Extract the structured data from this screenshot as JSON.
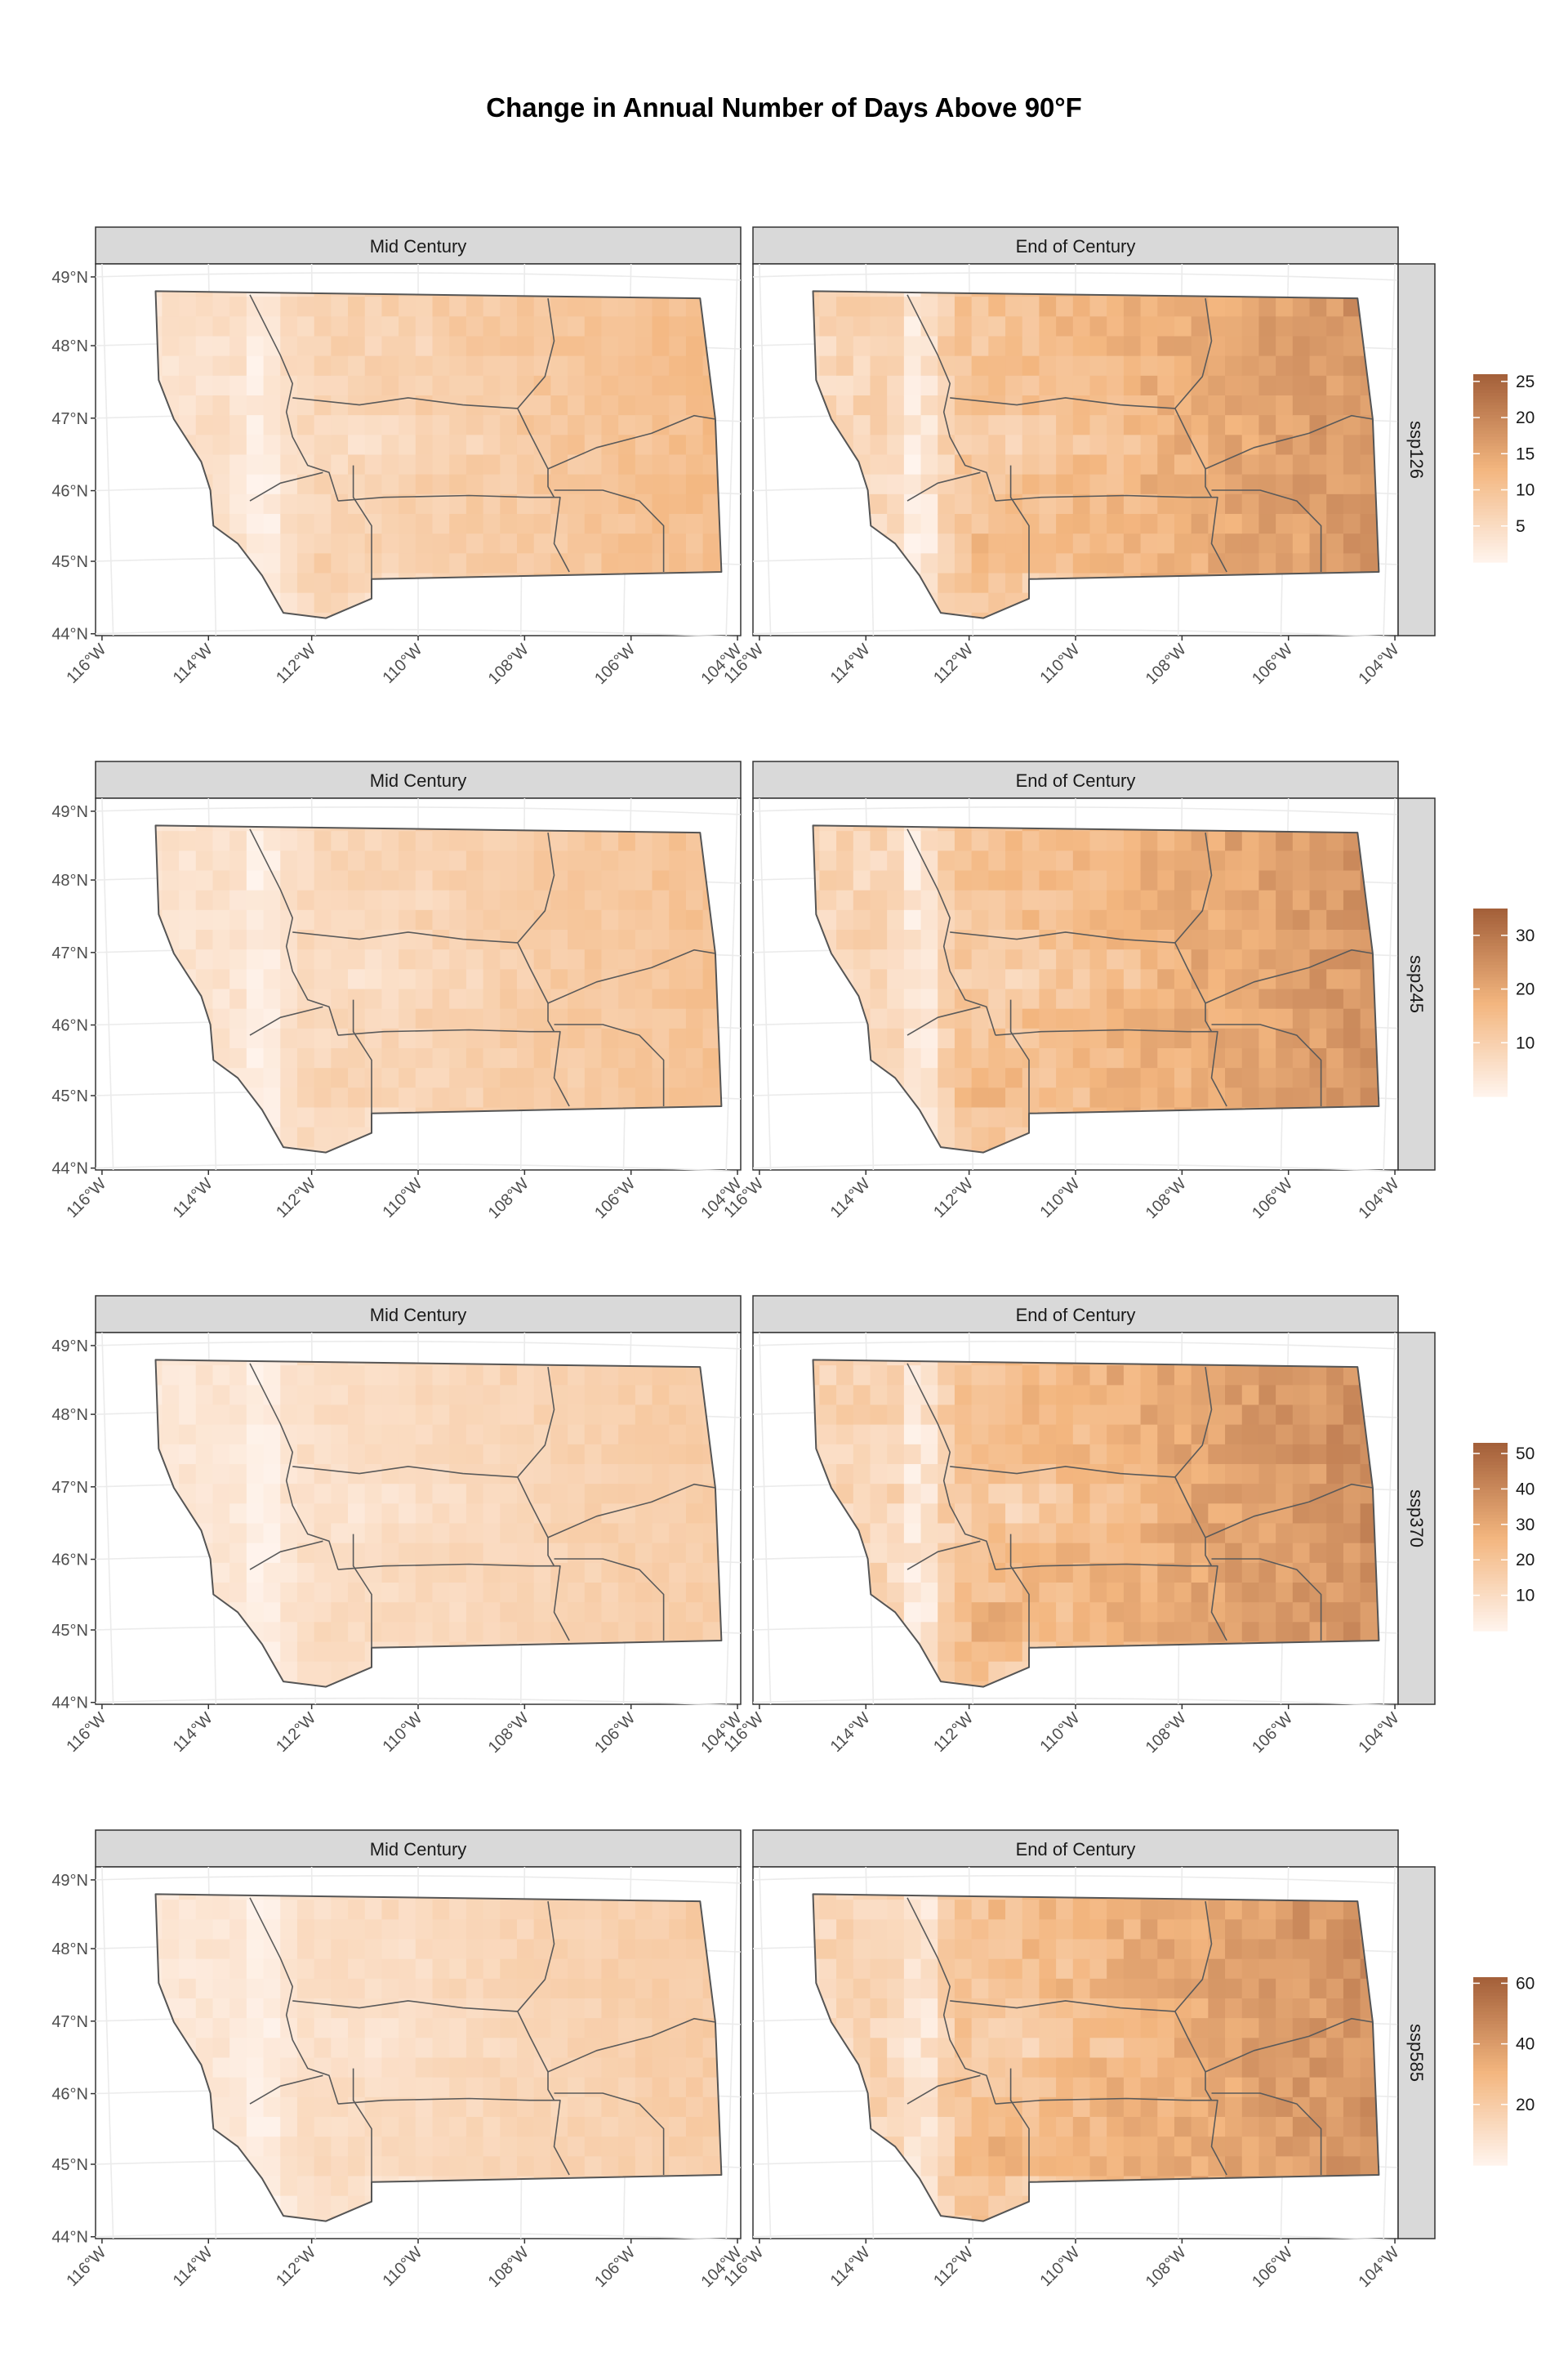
{
  "title": "Change in Annual Number of Days Above 90°F",
  "columns": [
    {
      "key": "mid",
      "label": "Mid Century"
    },
    {
      "key": "end",
      "label": "End of Century"
    }
  ],
  "latitude_ticks": [
    "49°N",
    "48°N",
    "47°N",
    "46°N",
    "45°N",
    "44°N"
  ],
  "longitude_ticks": [
    "116°W",
    "114°W",
    "112°W",
    "110°W",
    "108°W",
    "106°W",
    "104°W"
  ],
  "scenarios": [
    {
      "label": "ssp126",
      "legend_ticks": [
        5,
        10,
        15,
        20,
        25
      ],
      "legend_max": 26,
      "mid_intensity": 0.55,
      "end_intensity": 0.85
    },
    {
      "label": "ssp245",
      "legend_ticks": [
        10,
        20,
        30
      ],
      "legend_max": 35,
      "mid_intensity": 0.5,
      "end_intensity": 0.85
    },
    {
      "label": "ssp370",
      "legend_ticks": [
        10,
        20,
        30,
        40,
        50
      ],
      "legend_max": 53,
      "mid_intensity": 0.4,
      "end_intensity": 0.9
    },
    {
      "label": "ssp585",
      "legend_ticks": [
        20,
        40,
        60
      ],
      "legend_max": 62,
      "mid_intensity": 0.4,
      "end_intensity": 0.88
    }
  ],
  "colors": {
    "low": "#fff5ef",
    "mid": "#f3b67f",
    "high": "#a4603a",
    "strip_fill": "#d9d9d9",
    "grid": "#ebebeb"
  }
}
